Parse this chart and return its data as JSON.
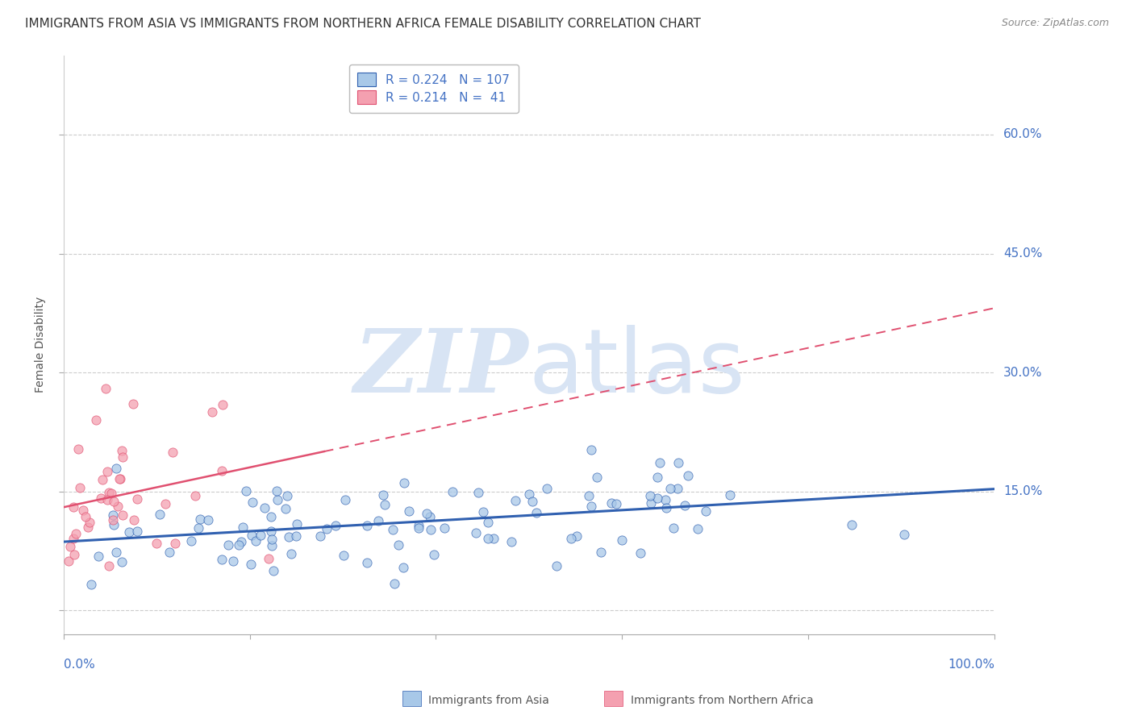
{
  "title": "IMMIGRANTS FROM ASIA VS IMMIGRANTS FROM NORTHERN AFRICA FEMALE DISABILITY CORRELATION CHART",
  "source": "Source: ZipAtlas.com",
  "ylabel": "Female Disability",
  "yticks": [
    0.0,
    0.15,
    0.3,
    0.45,
    0.6
  ],
  "ytick_labels": [
    "",
    "15.0%",
    "30.0%",
    "45.0%",
    "60.0%"
  ],
  "xlim": [
    0.0,
    1.0
  ],
  "ylim": [
    -0.03,
    0.7
  ],
  "legend_asia_R": "0.224",
  "legend_asia_N": "107",
  "legend_africa_R": "0.214",
  "legend_africa_N": " 41",
  "legend_label_asia": "Immigrants from Asia",
  "legend_label_africa": "Immigrants from Northern Africa",
  "color_asia": "#A8C8E8",
  "color_africa": "#F4A0B0",
  "color_asia_line": "#3060B0",
  "color_africa_line": "#E05070",
  "color_text_blue": "#4472C4",
  "watermark_color": "#D8E4F4",
  "background_color": "#FFFFFF",
  "title_fontsize": 11,
  "axis_label_fontsize": 10,
  "tick_fontsize": 11
}
